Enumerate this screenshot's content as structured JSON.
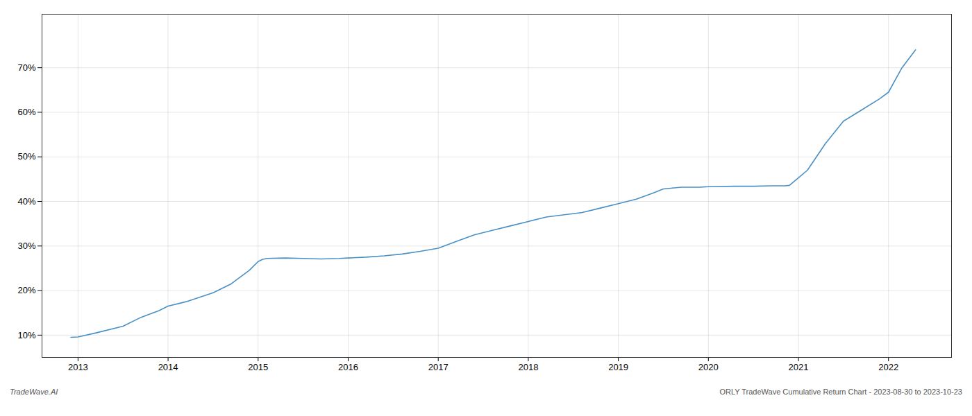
{
  "chart_data": {
    "type": "line",
    "annotations": [
      "TradeWave.AI",
      "ORLY TradeWave Cumulative Return Chart - 2023-08-30 to 2023-10-23"
    ],
    "color": "#4a90c4",
    "grid": true,
    "x": [
      2012.92,
      2013.0,
      2013.2,
      2013.5,
      2013.7,
      2013.9,
      2014.0,
      2014.2,
      2014.5,
      2014.7,
      2014.9,
      2015.0,
      2015.05,
      2015.1,
      2015.3,
      2015.5,
      2015.7,
      2015.9,
      2016.0,
      2016.2,
      2016.4,
      2016.6,
      2016.8,
      2017.0,
      2017.2,
      2017.4,
      2017.6,
      2017.8,
      2018.0,
      2018.2,
      2018.4,
      2018.6,
      2018.8,
      2019.0,
      2019.2,
      2019.4,
      2019.5,
      2019.6,
      2019.7,
      2019.9,
      2020.0,
      2020.3,
      2020.5,
      2020.7,
      2020.85,
      2020.9,
      2021.1,
      2021.3,
      2021.5,
      2021.7,
      2021.9,
      2022.0,
      2022.15,
      2022.3
    ],
    "values": [
      9.5,
      9.6,
      10.5,
      12.0,
      14.0,
      15.5,
      16.5,
      17.5,
      19.5,
      21.5,
      24.5,
      26.5,
      27.0,
      27.2,
      27.3,
      27.2,
      27.1,
      27.2,
      27.3,
      27.5,
      27.8,
      28.2,
      28.8,
      29.5,
      31.0,
      32.5,
      33.5,
      34.5,
      35.5,
      36.5,
      37.0,
      37.5,
      38.5,
      39.5,
      40.5,
      42.0,
      42.8,
      43.0,
      43.2,
      43.2,
      43.3,
      43.4,
      43.4,
      43.5,
      43.5,
      43.6,
      47.0,
      53.0,
      58.0,
      60.5,
      63.0,
      64.5,
      70.0,
      74.0
    ],
    "xlim": [
      2012.6,
      2022.7
    ],
    "xticks": [
      2013,
      2014,
      2015,
      2016,
      2017,
      2018,
      2019,
      2020,
      2021,
      2022
    ],
    "ylim": [
      5,
      82
    ],
    "yticks": [
      {
        "value": 10,
        "label": "10%"
      },
      {
        "value": 20,
        "label": "20%"
      },
      {
        "value": 30,
        "label": "30%"
      },
      {
        "value": 40,
        "label": "40%"
      },
      {
        "value": 50,
        "label": "50%"
      },
      {
        "value": 60,
        "label": "60%"
      },
      {
        "value": 70,
        "label": "70%"
      }
    ]
  }
}
